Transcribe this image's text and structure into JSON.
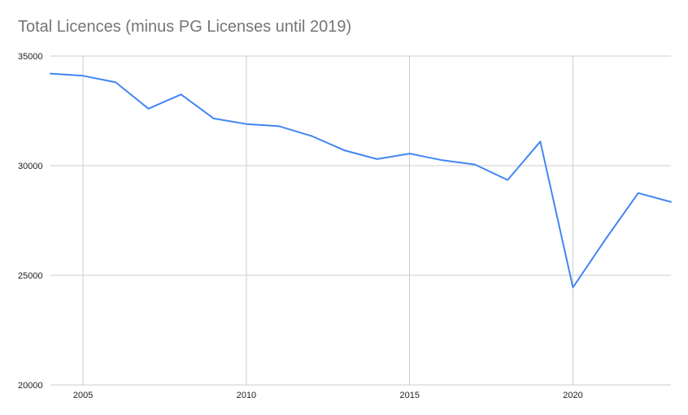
{
  "chart_data": {
    "type": "line",
    "title": "Total Licences (minus PG Licenses until 2019)",
    "xlabel": "",
    "ylabel": "",
    "xlim": [
      2004,
      2023
    ],
    "ylim": [
      20000,
      35000
    ],
    "x_ticks": [
      2005,
      2010,
      2015,
      2020
    ],
    "y_ticks": [
      20000,
      25000,
      30000,
      35000
    ],
    "grid": true,
    "series": [
      {
        "color": "#4285f4",
        "x": [
          2004,
          2005,
          2006,
          2007,
          2008,
          2009,
          2010,
          2011,
          2012,
          2013,
          2014,
          2015,
          2016,
          2017,
          2018,
          2019,
          2020,
          2021,
          2022,
          2023
        ],
        "y": [
          34200,
          34100,
          33800,
          32600,
          33250,
          32150,
          31900,
          31800,
          31350,
          30700,
          30300,
          30550,
          30250,
          30050,
          29350,
          31100,
          24450,
          26650,
          28750,
          28350
        ]
      }
    ],
    "colors": {
      "line": "#4285f4",
      "grid": "#cccccc",
      "title": "#757575",
      "tick_text": "#222222"
    }
  }
}
